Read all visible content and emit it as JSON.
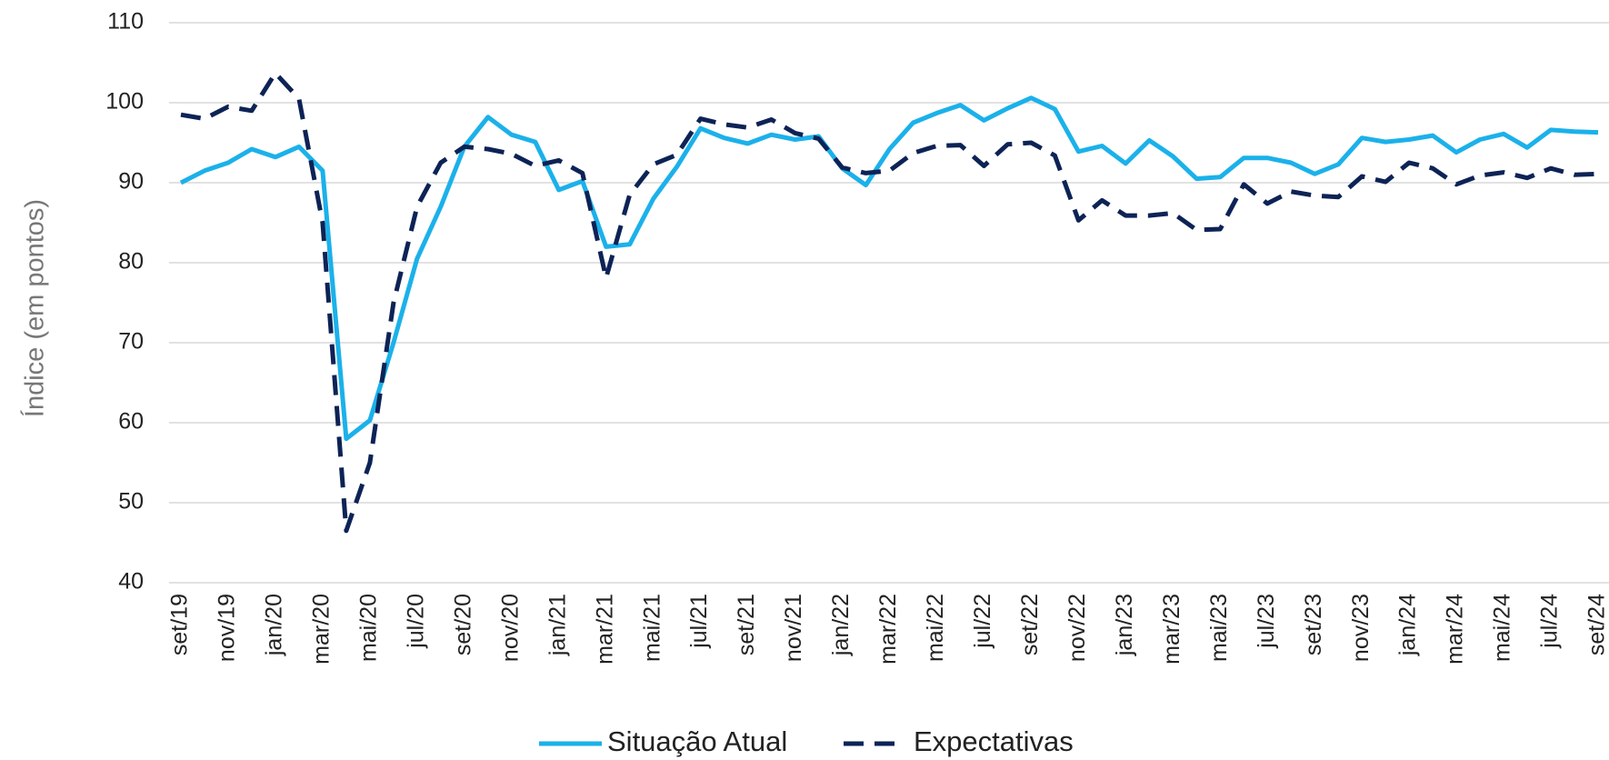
{
  "chart_data": {
    "type": "line",
    "ylabel": "Índice (em pontos)",
    "categories": [
      "set/19",
      null,
      "nov/19",
      null,
      "jan/20",
      null,
      "mar/20",
      null,
      "mai/20",
      null,
      "jul/20",
      null,
      "set/20",
      null,
      "nov/20",
      null,
      "jan/21",
      null,
      "mar/21",
      null,
      "mai/21",
      null,
      "jul/21",
      null,
      "set/21",
      null,
      "nov/21",
      null,
      "jan/22",
      null,
      "mar/22",
      null,
      "mai/22",
      null,
      "jul/22",
      null,
      "set/22",
      null,
      "nov/22",
      null,
      "jan/23",
      null,
      "mar/23",
      null,
      "mai/23",
      null,
      "jul/23",
      null,
      "set/23",
      null,
      "nov/23",
      null,
      "jan/24",
      null,
      "mar/24",
      null,
      "mai/24",
      null,
      "jul/24",
      null,
      "set/24"
    ],
    "series": [
      {
        "name": "Situação Atual",
        "color": "#1bb1ea",
        "dashed": false,
        "values": [
          90,
          91.5,
          92.5,
          94.2,
          93.2,
          94.5,
          91.5,
          58,
          60.3,
          70,
          80.5,
          87,
          94.5,
          98.2,
          96,
          95.1,
          89.1,
          90.2,
          82,
          82.3,
          88,
          92,
          96.8,
          95.6,
          94.9,
          96,
          95.4,
          95.8,
          91.8,
          89.7,
          94.2,
          97.5,
          98.7,
          99.7,
          97.8,
          99.3,
          100.6,
          99.2,
          93.9,
          94.6,
          92.4,
          95.3,
          93.3,
          90.5,
          90.7,
          93.1,
          93.1,
          92.5,
          91.1,
          92.3,
          95.6,
          95.1,
          95.4,
          95.9,
          93.8,
          95.4,
          96.1,
          94.4,
          96.6,
          96.4,
          96.3
        ]
      },
      {
        "name": "Expectativas",
        "color": "#0d2356",
        "dashed": true,
        "values": [
          98.5,
          98,
          99.5,
          99,
          103.7,
          100.5,
          85,
          46.5,
          55,
          75,
          87,
          92.5,
          94.5,
          94.2,
          93.6,
          92.1,
          92.8,
          91.2,
          78.1,
          88.5,
          92.3,
          93.5,
          98,
          97.3,
          96.9,
          97.9,
          96.2,
          95.5,
          91.9,
          91.2,
          91.5,
          93.7,
          94.6,
          94.7,
          92.1,
          94.8,
          95,
          93.4,
          85.3,
          87.8,
          85.9,
          85.9,
          86.2,
          84.1,
          84.2,
          89.8,
          87.4,
          88.9,
          88.4,
          88.2,
          90.8,
          90.1,
          92.5,
          91.8,
          89.8,
          90.9,
          91.3,
          90.6,
          91.8,
          91,
          91.1
        ]
      }
    ],
    "ylim": [
      40,
      110
    ],
    "yticks": [
      40,
      50,
      60,
      70,
      80,
      90,
      100,
      110
    ],
    "grid": true
  }
}
